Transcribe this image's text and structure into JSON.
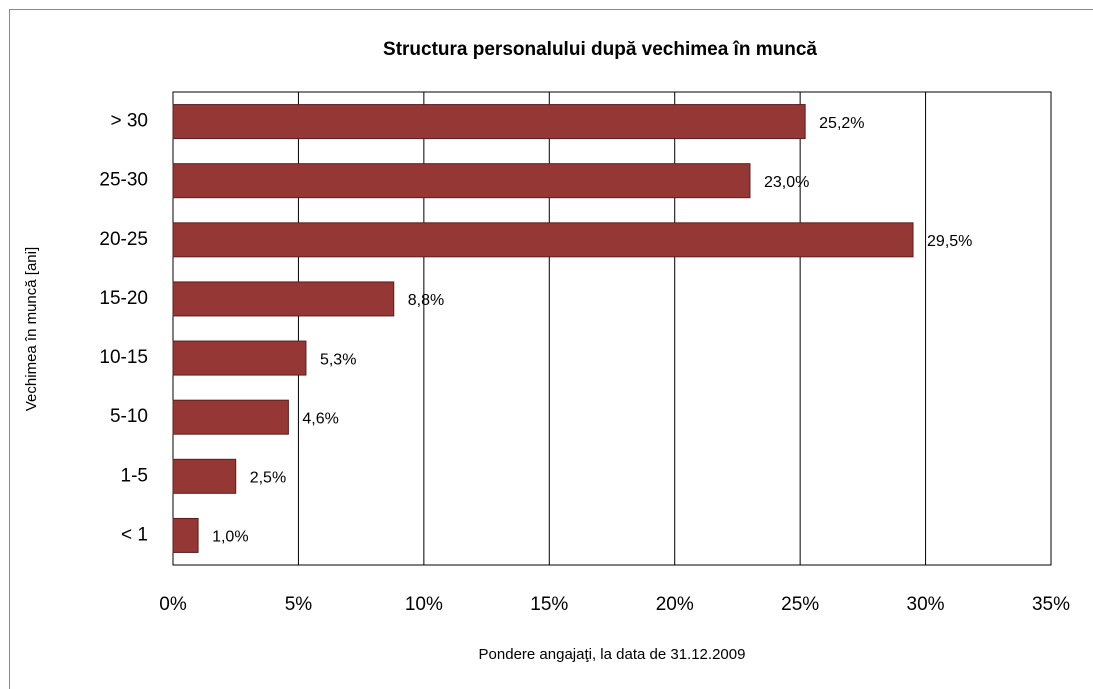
{
  "chart_data": {
    "type": "bar",
    "orientation": "horizontal",
    "title": "Structura personalului după vechimea în muncă",
    "xlabel": "Pondere angajaţi, la data de  31.12.2009",
    "ylabel": "Vechimea în muncă [ani]",
    "categories": [
      "> 30",
      "25-30",
      "20-25",
      "15-20",
      "10-15",
      "5-10",
      "1-5",
      "< 1"
    ],
    "values": [
      25.2,
      23.0,
      29.5,
      8.8,
      5.3,
      4.6,
      2.5,
      1.0
    ],
    "value_labels": [
      "25,2%",
      "23,0%",
      "29,5%",
      "8,8%",
      "5,3%",
      "4,6%",
      "2,5%",
      "1,0%"
    ],
    "color": "#953735",
    "xlim": [
      0,
      35
    ],
    "xticks": [
      {
        "value": 0,
        "label": "0%"
      },
      {
        "value": 5,
        "label": "5%"
      },
      {
        "value": 10,
        "label": "10%"
      },
      {
        "value": 15,
        "label": "15%"
      },
      {
        "value": 20,
        "label": "20%"
      },
      {
        "value": 25,
        "label": "25%"
      },
      {
        "value": 30,
        "label": "30%"
      },
      {
        "value": 35,
        "label": "35%"
      }
    ],
    "grid": true
  }
}
